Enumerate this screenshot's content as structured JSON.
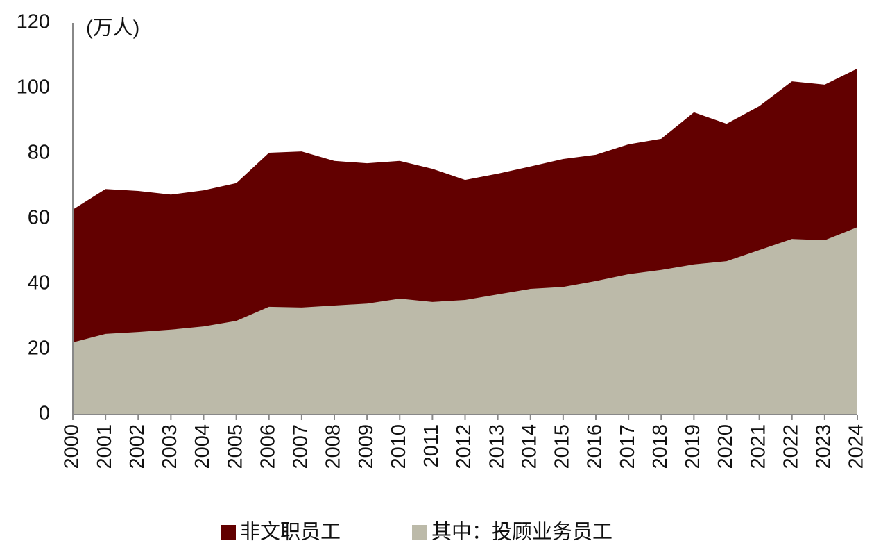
{
  "chart_data": {
    "type": "area",
    "unit_label": "(万人)",
    "categories": [
      "2000",
      "2001",
      "2002",
      "2003",
      "2004",
      "2005",
      "2006",
      "2007",
      "2008",
      "2009",
      "2010",
      "2011",
      "2012",
      "2013",
      "2014",
      "2015",
      "2016",
      "2017",
      "2018",
      "2019",
      "2020",
      "2021",
      "2022",
      "2023",
      "2024"
    ],
    "series": [
      {
        "name": "非文职员工",
        "color": "#620000",
        "values": [
          62.8,
          69.1,
          68.5,
          67.4,
          68.7,
          70.9,
          80.2,
          80.6,
          77.7,
          77.0,
          77.7,
          75.3,
          71.9,
          73.8,
          76.0,
          78.3,
          79.6,
          82.8,
          84.5,
          92.6,
          89.1,
          94.5,
          102.1,
          101.1,
          106.0
        ]
      },
      {
        "name": "其中：投顾业务员工",
        "color": "#bcbaa9",
        "values": [
          22.1,
          24.7,
          25.3,
          26.0,
          27.0,
          28.7,
          33.0,
          32.8,
          33.4,
          34.0,
          35.5,
          34.5,
          35.1,
          36.8,
          38.5,
          39.1,
          40.9,
          43.0,
          44.3,
          46.0,
          47.0,
          50.4,
          53.8,
          53.4,
          57.4
        ]
      }
    ],
    "ylim": [
      0,
      120
    ],
    "yticks": [
      0,
      20,
      40,
      60,
      80,
      100,
      120
    ],
    "grid": false,
    "legend": "bottom"
  }
}
